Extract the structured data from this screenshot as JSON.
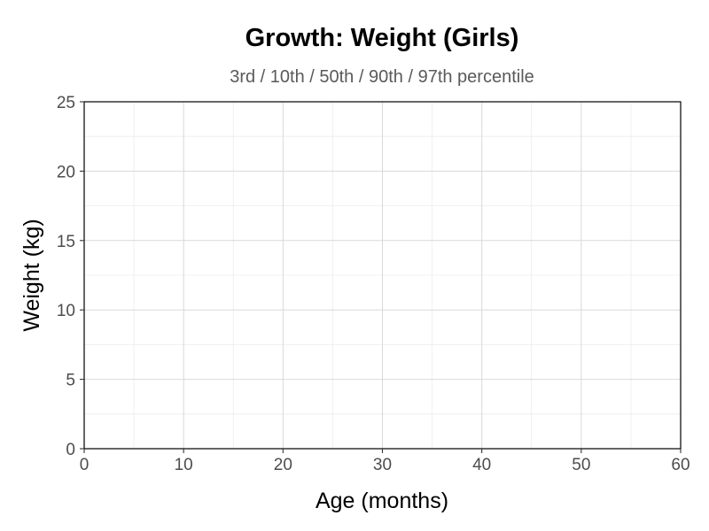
{
  "chart_data": {
    "type": "line",
    "title": "Growth: Weight (Girls)",
    "subtitle": "3rd / 10th / 50th / 90th / 97th percentile",
    "xlabel": "Age (months)",
    "ylabel": "Weight (kg)",
    "xlim": [
      0,
      60
    ],
    "ylim": [
      0,
      25
    ],
    "x_ticks": [
      0,
      10,
      20,
      30,
      40,
      50,
      60
    ],
    "y_ticks": [
      0,
      5,
      10,
      15,
      20,
      25
    ],
    "x_tick_labels": [
      "0",
      "10",
      "20",
      "30",
      "40",
      "50",
      "60"
    ],
    "y_tick_labels": [
      "0",
      "5",
      "10",
      "15",
      "20",
      "25"
    ],
    "grid": true,
    "series": []
  },
  "colors": {
    "panel_border": "#000000",
    "grid_major": "#d9d9d9",
    "grid_minor": "#ececec",
    "tick_label": "#4d4d4d",
    "subtitle": "#5a5a5a"
  }
}
